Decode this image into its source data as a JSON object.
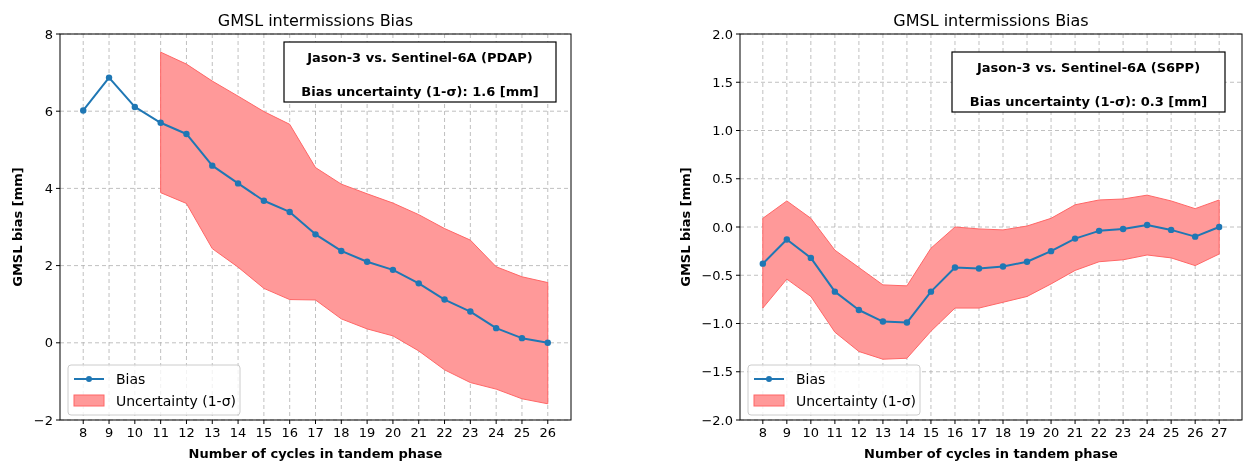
{
  "chart_data": [
    {
      "type": "line",
      "title": "GMSL intermissions Bias",
      "xlabel": "Number of cycles in tandem phase",
      "ylabel": "GMSL bias [mm]",
      "x": [
        8,
        9,
        10,
        11,
        12,
        13,
        14,
        15,
        16,
        17,
        18,
        19,
        20,
        21,
        22,
        23,
        24,
        25,
        26
      ],
      "xlim": [
        7.1,
        26.9
      ],
      "xticks": [
        8,
        9,
        10,
        11,
        12,
        13,
        14,
        15,
        16,
        17,
        18,
        19,
        20,
        21,
        22,
        23,
        24,
        25,
        26
      ],
      "ylim": [
        -2,
        8
      ],
      "yticks": [
        {
          "value": -2,
          "label": "−2"
        },
        0,
        2,
        4,
        6,
        8
      ],
      "grid": true,
      "legend": "bottom left",
      "marker": "circle",
      "line_style": "solid",
      "annotations": [
        "Jason-3 vs. Sentinel-6A (PDAP)",
        "Bias uncertainty (1-σ): 1.6 [mm]",
        "Uncertainty (1-σ)"
      ],
      "series": [
        {
          "name": "Bias",
          "color": "#1f77b4",
          "values": [
            6.02,
            6.87,
            6.11,
            5.7,
            5.41,
            4.59,
            4.13,
            3.68,
            3.39,
            2.81,
            2.38,
            2.1,
            1.89,
            1.54,
            1.12,
            0.81,
            0.38,
            0.12,
            0
          ],
          "lower": [
            null,
            null,
            null,
            3.89,
            3.61,
            2.44,
            1.96,
            1.41,
            1.12,
            1.11,
            0.62,
            0.36,
            0.18,
            -0.21,
            -0.7,
            -1.03,
            -1.2,
            -1.45,
            -1.58
          ],
          "upper": [
            null,
            null,
            null,
            7.53,
            7.22,
            6.78,
            6.39,
            5.99,
            5.66,
            4.54,
            4.11,
            3.86,
            3.62,
            3.32,
            2.96,
            2.66,
            1.97,
            1.71,
            1.56
          ]
        }
      ]
    },
    {
      "type": "line",
      "title": "GMSL intermissions Bias",
      "xlabel": "Number of cycles in tandem phase",
      "ylabel": "GMSL bias [mm]",
      "x": [
        8,
        9,
        10,
        11,
        12,
        13,
        14,
        15,
        16,
        17,
        18,
        19,
        20,
        21,
        22,
        23,
        24,
        25,
        26,
        27
      ],
      "xlim": [
        7.05,
        27.95
      ],
      "xticks": [
        8,
        9,
        10,
        11,
        12,
        13,
        14,
        15,
        16,
        17,
        18,
        19,
        20,
        21,
        22,
        23,
        24,
        25,
        26,
        27
      ],
      "ylim": [
        -2,
        2
      ],
      "yticks": [
        {
          "value": -2,
          "label": "−2.0"
        },
        {
          "value": -1.5,
          "label": "−1.5"
        },
        {
          "value": -1,
          "label": "−1.0"
        },
        {
          "value": -0.5,
          "label": "−0.5"
        },
        {
          "value": 0,
          "label": "0.0"
        },
        0.5,
        {
          "value": 1,
          "label": "1.0"
        },
        1.5,
        {
          "value": 2,
          "label": "2.0"
        }
      ],
      "grid": true,
      "legend": "bottom left",
      "marker": "circle",
      "line_style": "solid",
      "annotations": [
        "Jason-3 vs. Sentinel-6A (S6PP)",
        "Bias uncertainty (1-σ): 0.3 [mm]",
        "Uncertainty (1-σ)"
      ],
      "series": [
        {
          "name": "Bias",
          "color": "#1f77b4",
          "values": [
            -0.38,
            -0.13,
            -0.32,
            -0.67,
            -0.86,
            -0.98,
            -0.99,
            -0.67,
            -0.42,
            -0.43,
            -0.41,
            -0.36,
            -0.25,
            -0.12,
            -0.04,
            -0.02,
            0.02,
            -0.03,
            -0.1,
            0
          ],
          "lower": [
            -0.84,
            -0.54,
            -0.72,
            -1.09,
            -1.29,
            -1.37,
            -1.36,
            -1.08,
            -0.84,
            -0.84,
            -0.78,
            -0.72,
            -0.59,
            -0.45,
            -0.36,
            -0.34,
            -0.29,
            -0.32,
            -0.4,
            -0.28
          ],
          "upper": [
            0.09,
            0.27,
            0.09,
            -0.24,
            -0.42,
            -0.6,
            -0.61,
            -0.22,
            0,
            -0.02,
            -0.03,
            0.01,
            0.09,
            0.23,
            0.28,
            0.29,
            0.33,
            0.27,
            0.19,
            0.28
          ]
        }
      ]
    }
  ]
}
